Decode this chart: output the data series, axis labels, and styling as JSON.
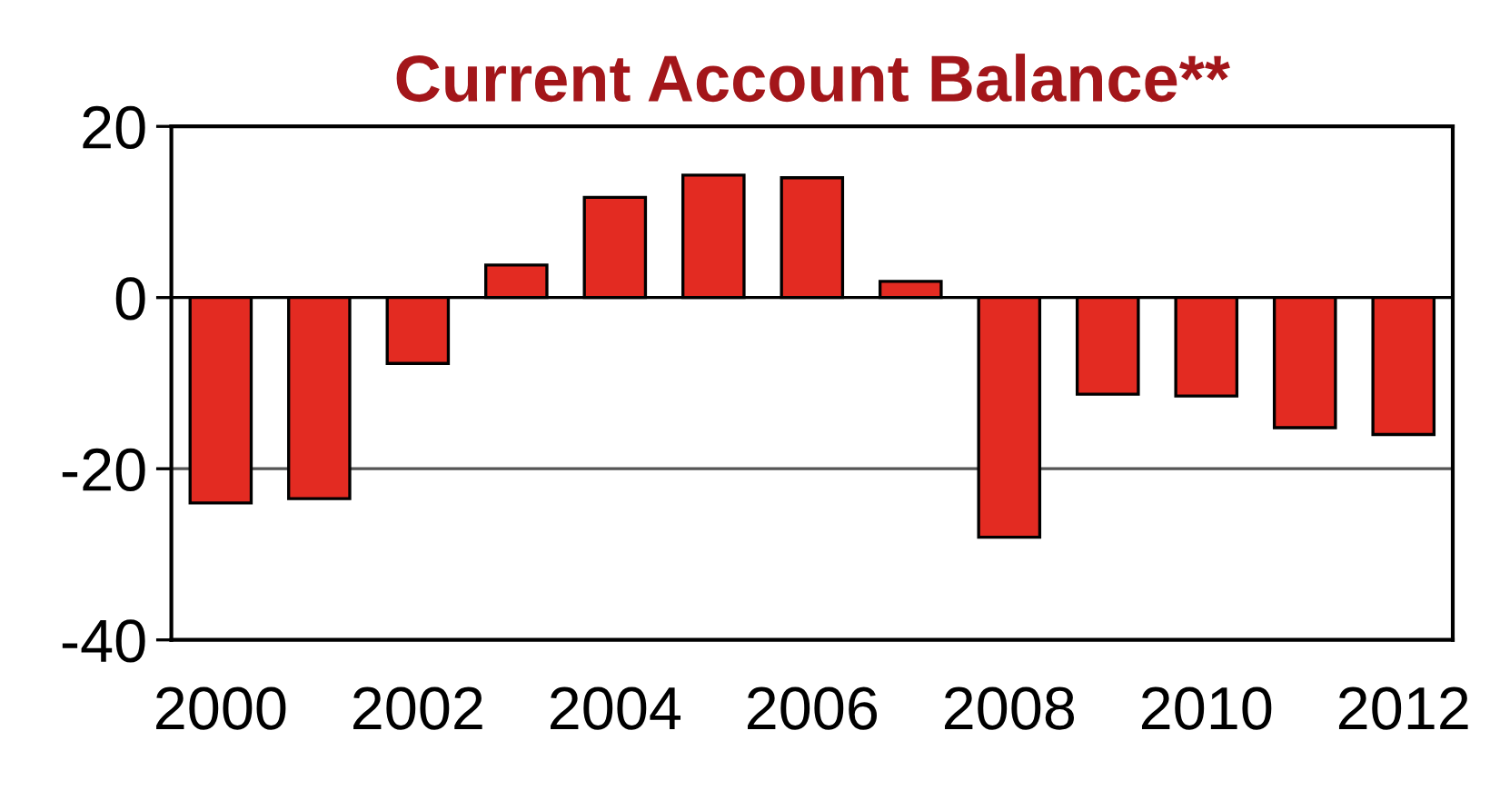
{
  "chart_data": {
    "type": "bar",
    "title": "Current Account Balance**",
    "categories": [
      "2000",
      null,
      "2002",
      null,
      "2004",
      null,
      "2006",
      null,
      "2008",
      null,
      "2010",
      null,
      "2012"
    ],
    "values": [
      -24,
      -23.5,
      -7.7,
      3.8,
      11.7,
      14.3,
      14,
      1.9,
      -28,
      -11.3,
      -11.5,
      -15.2,
      -16
    ],
    "color": "#e32b22",
    "ylim": [
      -40,
      20
    ],
    "yticks": [
      -40,
      -20,
      0,
      20
    ],
    "ref_lines": [
      {
        "axis": "y",
        "value": -20,
        "color": "#555555"
      },
      {
        "axis": "y",
        "value": 0,
        "color": "#000000"
      }
    ]
  }
}
